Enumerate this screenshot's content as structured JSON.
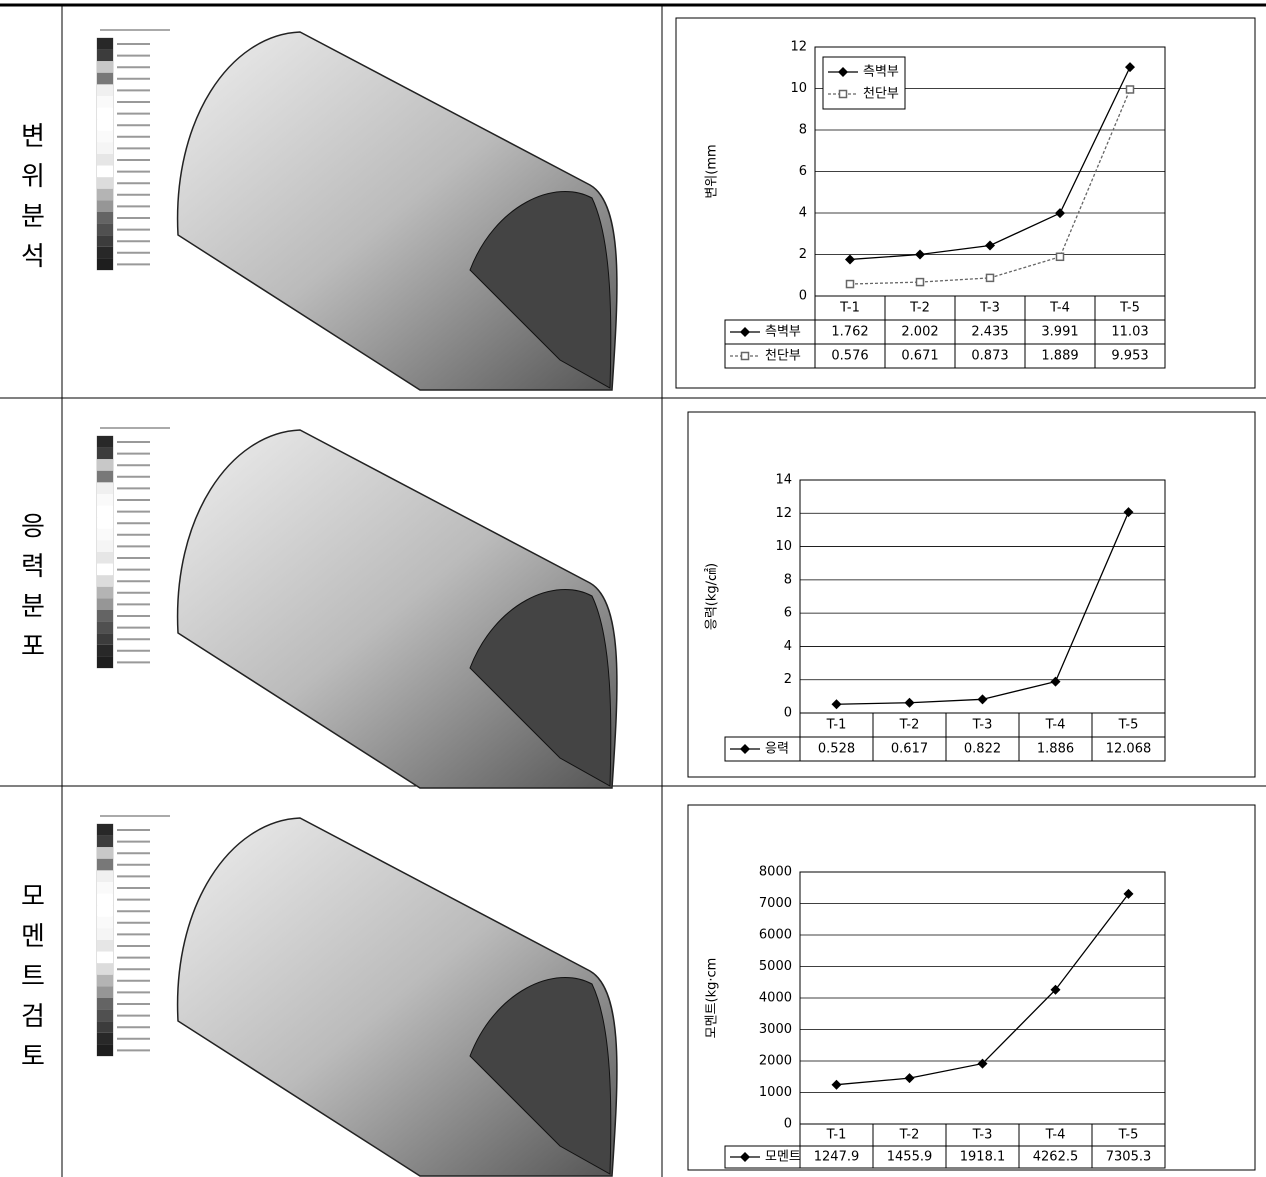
{
  "row_labels": [
    "변위분석",
    "응력분포",
    "모멘트검토"
  ],
  "chart_data": [
    {
      "type": "line",
      "ylabel": "변위(mm",
      "categories": [
        "T-1",
        "T-2",
        "T-3",
        "T-4",
        "T-5"
      ],
      "series": [
        {
          "name": "측벽부",
          "color": "#000000",
          "marker": "diamond",
          "dash": false,
          "values": [
            1.762,
            2.002,
            2.435,
            3.991,
            11.03
          ]
        },
        {
          "name": "천단부",
          "color": "#666666",
          "marker": "square",
          "dash": true,
          "values": [
            0.576,
            0.671,
            0.873,
            1.889,
            9.953
          ]
        }
      ],
      "ylim": [
        0,
        12
      ],
      "yticks": [
        0,
        2,
        4,
        6,
        8,
        10,
        12
      ],
      "grid": true,
      "legend": "upper left"
    },
    {
      "type": "line",
      "ylabel": "응력(kg/㎠)",
      "categories": [
        "T-1",
        "T-2",
        "T-3",
        "T-4",
        "T-5"
      ],
      "series": [
        {
          "name": "응력",
          "color": "#000000",
          "marker": "diamond",
          "dash": false,
          "values": [
            0.528,
            0.617,
            0.822,
            1.886,
            12.068
          ]
        }
      ],
      "ylim": [
        0,
        14
      ],
      "yticks": [
        0,
        2,
        4,
        6,
        8,
        10,
        12,
        14
      ],
      "grid": true
    },
    {
      "type": "line",
      "ylabel": "모멘트(kg·cm",
      "categories": [
        "T-1",
        "T-2",
        "T-3",
        "T-4",
        "T-5"
      ],
      "series": [
        {
          "name": "모멘트",
          "color": "#000000",
          "marker": "diamond",
          "dash": false,
          "values": [
            1247.9,
            1455.9,
            1918.1,
            4262.5,
            7305.3
          ]
        }
      ],
      "ylim": [
        0,
        8000
      ],
      "yticks": [
        0,
        1000,
        2000,
        3000,
        4000,
        5000,
        6000,
        7000,
        8000
      ],
      "grid": true
    }
  ]
}
